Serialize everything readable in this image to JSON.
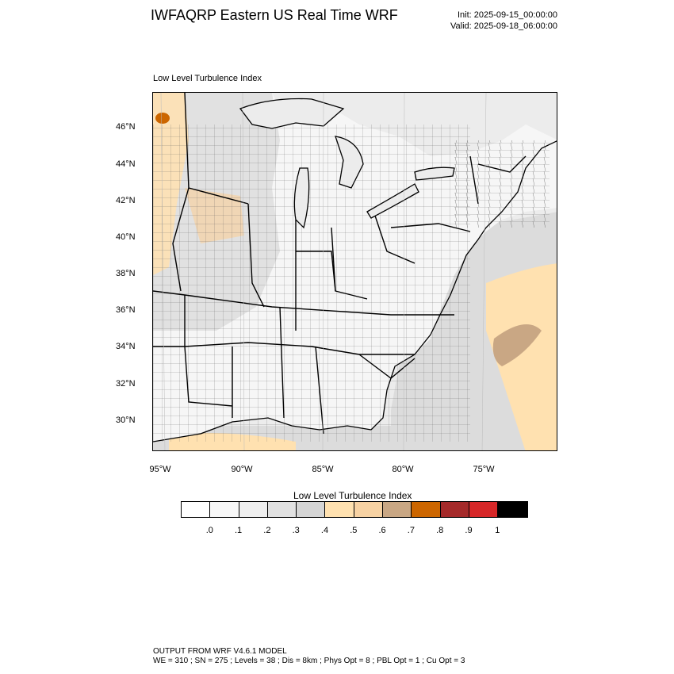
{
  "header": {
    "title": "IWFAQRP Eastern US Real Time WRF",
    "init": "Init: 2025-09-15_00:00:00",
    "valid": "Valid: 2025-09-18_06:00:00"
  },
  "map": {
    "field_label": "Low Level Turbulence Index",
    "lat_labels": [
      "46°N",
      "44°N",
      "42°N",
      "40°N",
      "38°N",
      "36°N",
      "34°N",
      "32°N",
      "30°N"
    ],
    "lon_labels": [
      "95°W",
      "90°W",
      "85°W",
      "80°W",
      "75°W"
    ]
  },
  "colorbar": {
    "title": "Low Level Turbulence Index",
    "colors": [
      "#ffffff",
      "#f7f7f7",
      "#efefef",
      "#e1e1e1",
      "#d5d5d5",
      "#ffe1b0",
      "#f7d2a3",
      "#c9a784",
      "#cc6600",
      "#a52a2a",
      "#d62728",
      "#000000"
    ],
    "tick_labels": [
      ".0",
      ".1",
      ".2",
      ".3",
      ".4",
      ".5",
      ".6",
      ".7",
      ".8",
      ".9",
      "1"
    ]
  },
  "footer": {
    "line1": "OUTPUT FROM WRF V4.6.1 MODEL",
    "line2": "WE = 310 ; SN = 275 ; Levels = 38 ; Dis = 8km ; Phys Opt = 8 ; PBL Opt = 1 ; Cu Opt = 3"
  }
}
